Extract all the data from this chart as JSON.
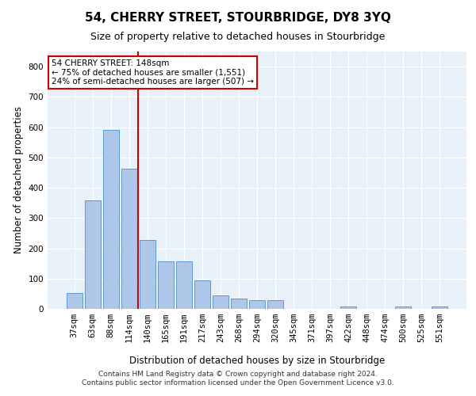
{
  "title": "54, CHERRY STREET, STOURBRIDGE, DY8 3YQ",
  "subtitle": "Size of property relative to detached houses in Stourbridge",
  "xlabel": "Distribution of detached houses by size in Stourbridge",
  "ylabel": "Number of detached properties",
  "categories": [
    "37sqm",
    "63sqm",
    "88sqm",
    "114sqm",
    "140sqm",
    "165sqm",
    "191sqm",
    "217sqm",
    "243sqm",
    "268sqm",
    "294sqm",
    "320sqm",
    "345sqm",
    "371sqm",
    "397sqm",
    "422sqm",
    "448sqm",
    "474sqm",
    "500sqm",
    "525sqm",
    "551sqm"
  ],
  "values": [
    52,
    358,
    590,
    463,
    228,
    157,
    157,
    95,
    45,
    35,
    28,
    28,
    0,
    0,
    0,
    8,
    0,
    0,
    8,
    0,
    8
  ],
  "bar_color": "#aec6e8",
  "bar_edge_color": "#5a9ad5",
  "vline_pos": 3.5,
  "vline_color": "#cc0000",
  "annotation_text": "54 CHERRY STREET: 148sqm\n← 75% of detached houses are smaller (1,551)\n24% of semi-detached houses are larger (507) →",
  "annotation_box_color": "#ffffff",
  "annotation_box_edge": "#cc0000",
  "ylim": [
    0,
    850
  ],
  "yticks": [
    0,
    100,
    200,
    300,
    400,
    500,
    600,
    700,
    800
  ],
  "bg_color": "#e8f0f8",
  "grid_color": "#ffffff",
  "footer": "Contains HM Land Registry data © Crown copyright and database right 2024.\nContains public sector information licensed under the Open Government Licence v3.0.",
  "title_fontsize": 11,
  "subtitle_fontsize": 9,
  "label_fontsize": 8.5,
  "tick_fontsize": 7.5,
  "footer_fontsize": 6.5
}
